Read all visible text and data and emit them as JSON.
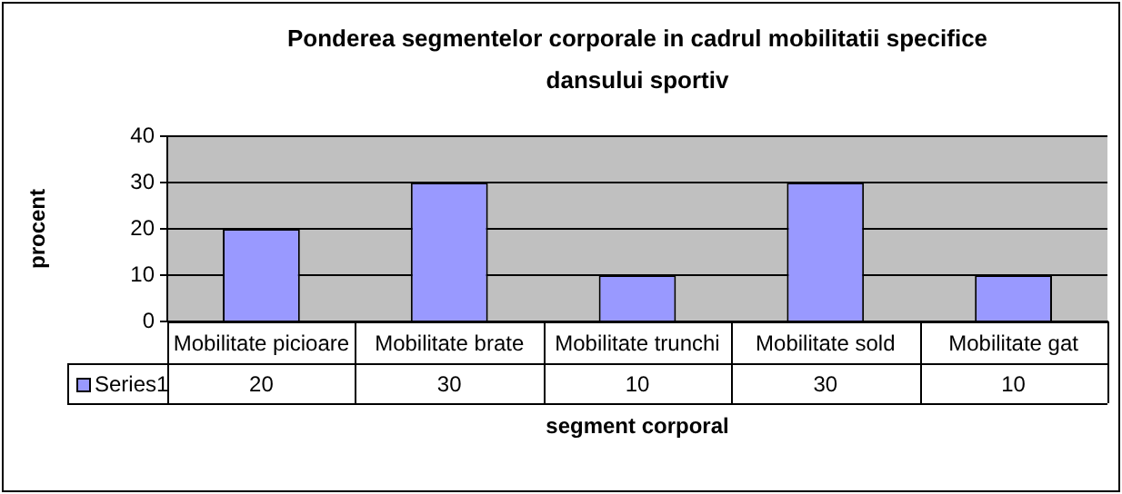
{
  "chart_data": {
    "type": "bar",
    "title": "Ponderea segmentelor corporale in cadrul mobilitatii specifice dansului sportiv",
    "xlabel": "segment corporal",
    "ylabel": "procent",
    "categories": [
      "Mobilitate picioare",
      "Mobilitate brate",
      "Mobilitate trunchi",
      "Mobilitate sold",
      "Mobilitate gat"
    ],
    "series": [
      {
        "name": "Series1",
        "color": "#9999ff",
        "values": [
          20,
          30,
          10,
          30,
          10
        ]
      }
    ],
    "ylim": [
      0,
      40
    ],
    "yticks": [
      0,
      10,
      20,
      30,
      40
    ],
    "grid": "y",
    "data_labels": true
  }
}
